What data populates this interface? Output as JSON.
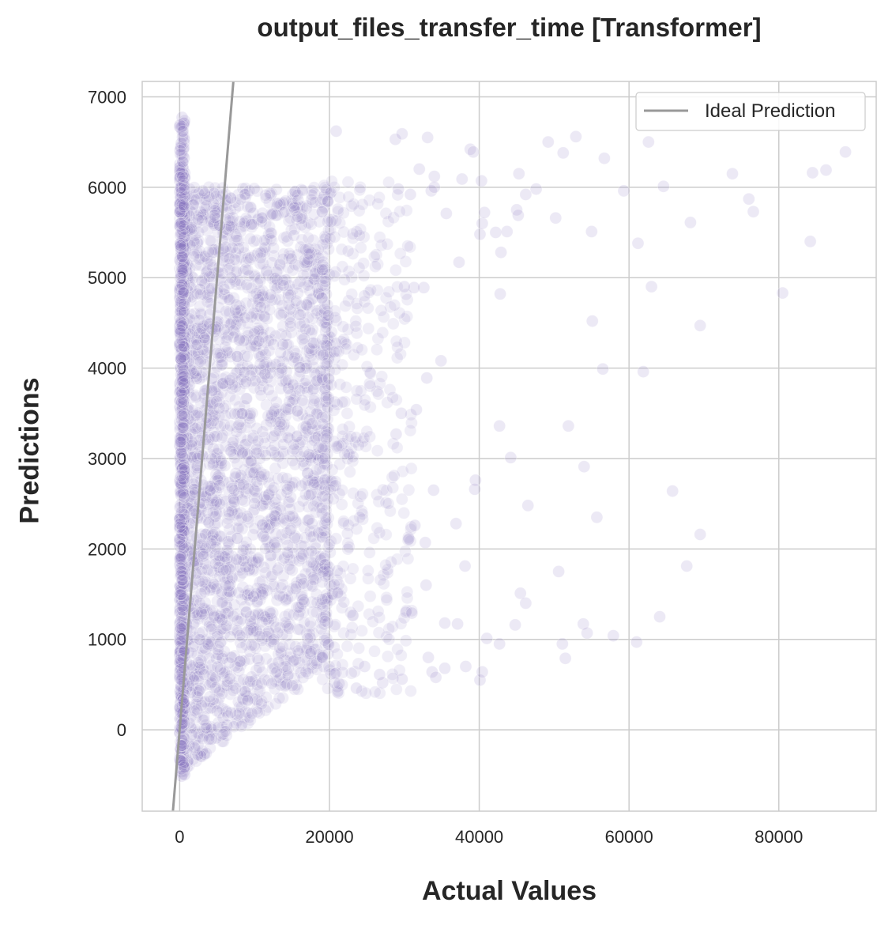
{
  "chart_data": {
    "type": "scatter",
    "title": "output_files_transfer_time [Transformer]",
    "xlabel": "Actual Values",
    "ylabel": "Predictions",
    "xlim": [
      -5000,
      93000
    ],
    "ylim": [
      -900,
      7170
    ],
    "x_ticks": [
      0,
      20000,
      40000,
      60000,
      80000
    ],
    "y_ticks": [
      0,
      1000,
      2000,
      3000,
      4000,
      5000,
      6000,
      7000
    ],
    "x_tick_labels": [
      "0",
      "20000",
      "40000",
      "60000",
      "80000"
    ],
    "y_tick_labels": [
      "0",
      "1000",
      "2000",
      "3000",
      "4000",
      "5000",
      "6000",
      "7000"
    ],
    "grid": true,
    "legend_position": "top-right",
    "point_color": "#8878c3",
    "reference_line": {
      "name": "Ideal Prediction",
      "color": "#999999",
      "from": [
        -900,
        -900
      ],
      "to": [
        7170,
        7170
      ]
    },
    "series": [
      {
        "style": "scatter",
        "dense_regions": [
          {
            "x_range": [
              0,
              20000
            ],
            "y_range": [
              -500,
              6000
            ],
            "description": "main cluster"
          }
        ],
        "outliers": [
          [
            20900,
            6620
          ],
          [
            28800,
            6530
          ],
          [
            29700,
            6590
          ],
          [
            33100,
            6550
          ],
          [
            38800,
            6420
          ],
          [
            39200,
            6390
          ],
          [
            49200,
            6500
          ],
          [
            51200,
            6380
          ],
          [
            52900,
            6560
          ],
          [
            56700,
            6320
          ],
          [
            62600,
            6500
          ],
          [
            73800,
            6150
          ],
          [
            84500,
            6160
          ],
          [
            86300,
            6190
          ],
          [
            88900,
            6390
          ],
          [
            32000,
            6200
          ],
          [
            34000,
            6120
          ],
          [
            37700,
            6090
          ],
          [
            40300,
            6070
          ],
          [
            45300,
            6150
          ],
          [
            47600,
            5980
          ],
          [
            59300,
            5960
          ],
          [
            64600,
            6010
          ],
          [
            42200,
            5500
          ],
          [
            42900,
            5280
          ],
          [
            40100,
            5480
          ],
          [
            40400,
            5600
          ],
          [
            40700,
            5720
          ],
          [
            43700,
            5510
          ],
          [
            45000,
            5750
          ],
          [
            45200,
            5690
          ],
          [
            46200,
            5920
          ],
          [
            50200,
            5660
          ],
          [
            55000,
            5510
          ],
          [
            61200,
            5380
          ],
          [
            68200,
            5610
          ],
          [
            76000,
            5870
          ],
          [
            76600,
            5730
          ],
          [
            84200,
            5400
          ],
          [
            29200,
            5980
          ],
          [
            30800,
            5920
          ],
          [
            33600,
            5960
          ],
          [
            35600,
            5710
          ],
          [
            37300,
            5170
          ],
          [
            34000,
            6000
          ],
          [
            32600,
            4890
          ],
          [
            31300,
            4890
          ],
          [
            30000,
            4900
          ],
          [
            42800,
            4820
          ],
          [
            55100,
            4520
          ],
          [
            56500,
            3990
          ],
          [
            61900,
            3960
          ],
          [
            63000,
            4900
          ],
          [
            69500,
            4470
          ],
          [
            80500,
            4830
          ],
          [
            34900,
            4080
          ],
          [
            33000,
            3890
          ],
          [
            31600,
            3540
          ],
          [
            29600,
            3500
          ],
          [
            28900,
            3270
          ],
          [
            42700,
            3360
          ],
          [
            51900,
            3360
          ],
          [
            44200,
            3010
          ],
          [
            54000,
            2910
          ],
          [
            39500,
            2760
          ],
          [
            39400,
            2660
          ],
          [
            33900,
            2650
          ],
          [
            46500,
            2480
          ],
          [
            65800,
            2640
          ],
          [
            55700,
            2350
          ],
          [
            36900,
            2280
          ],
          [
            69500,
            2160
          ],
          [
            31400,
            2260
          ],
          [
            30600,
            2110
          ],
          [
            32800,
            2070
          ],
          [
            38100,
            1810
          ],
          [
            50600,
            1750
          ],
          [
            67700,
            1810
          ],
          [
            45500,
            1510
          ],
          [
            46200,
            1400
          ],
          [
            32900,
            1600
          ],
          [
            30200,
            1300
          ],
          [
            31000,
            1290
          ],
          [
            35400,
            1180
          ],
          [
            37100,
            1170
          ],
          [
            44800,
            1160
          ],
          [
            53900,
            1170
          ],
          [
            54400,
            1070
          ],
          [
            57900,
            1040
          ],
          [
            64100,
            1250
          ],
          [
            61000,
            970
          ],
          [
            41000,
            1010
          ],
          [
            42700,
            950
          ],
          [
            51100,
            950
          ],
          [
            51500,
            790
          ],
          [
            38200,
            700
          ],
          [
            40100,
            550
          ],
          [
            40400,
            640
          ],
          [
            33200,
            800
          ],
          [
            33700,
            640
          ],
          [
            34200,
            580
          ],
          [
            35400,
            680
          ],
          [
            29700,
            560
          ],
          [
            27100,
            520
          ],
          [
            26700,
            610
          ],
          [
            24700,
            700
          ],
          [
            23600,
            460
          ],
          [
            20700,
            620
          ],
          [
            21300,
            510
          ]
        ]
      }
    ]
  }
}
